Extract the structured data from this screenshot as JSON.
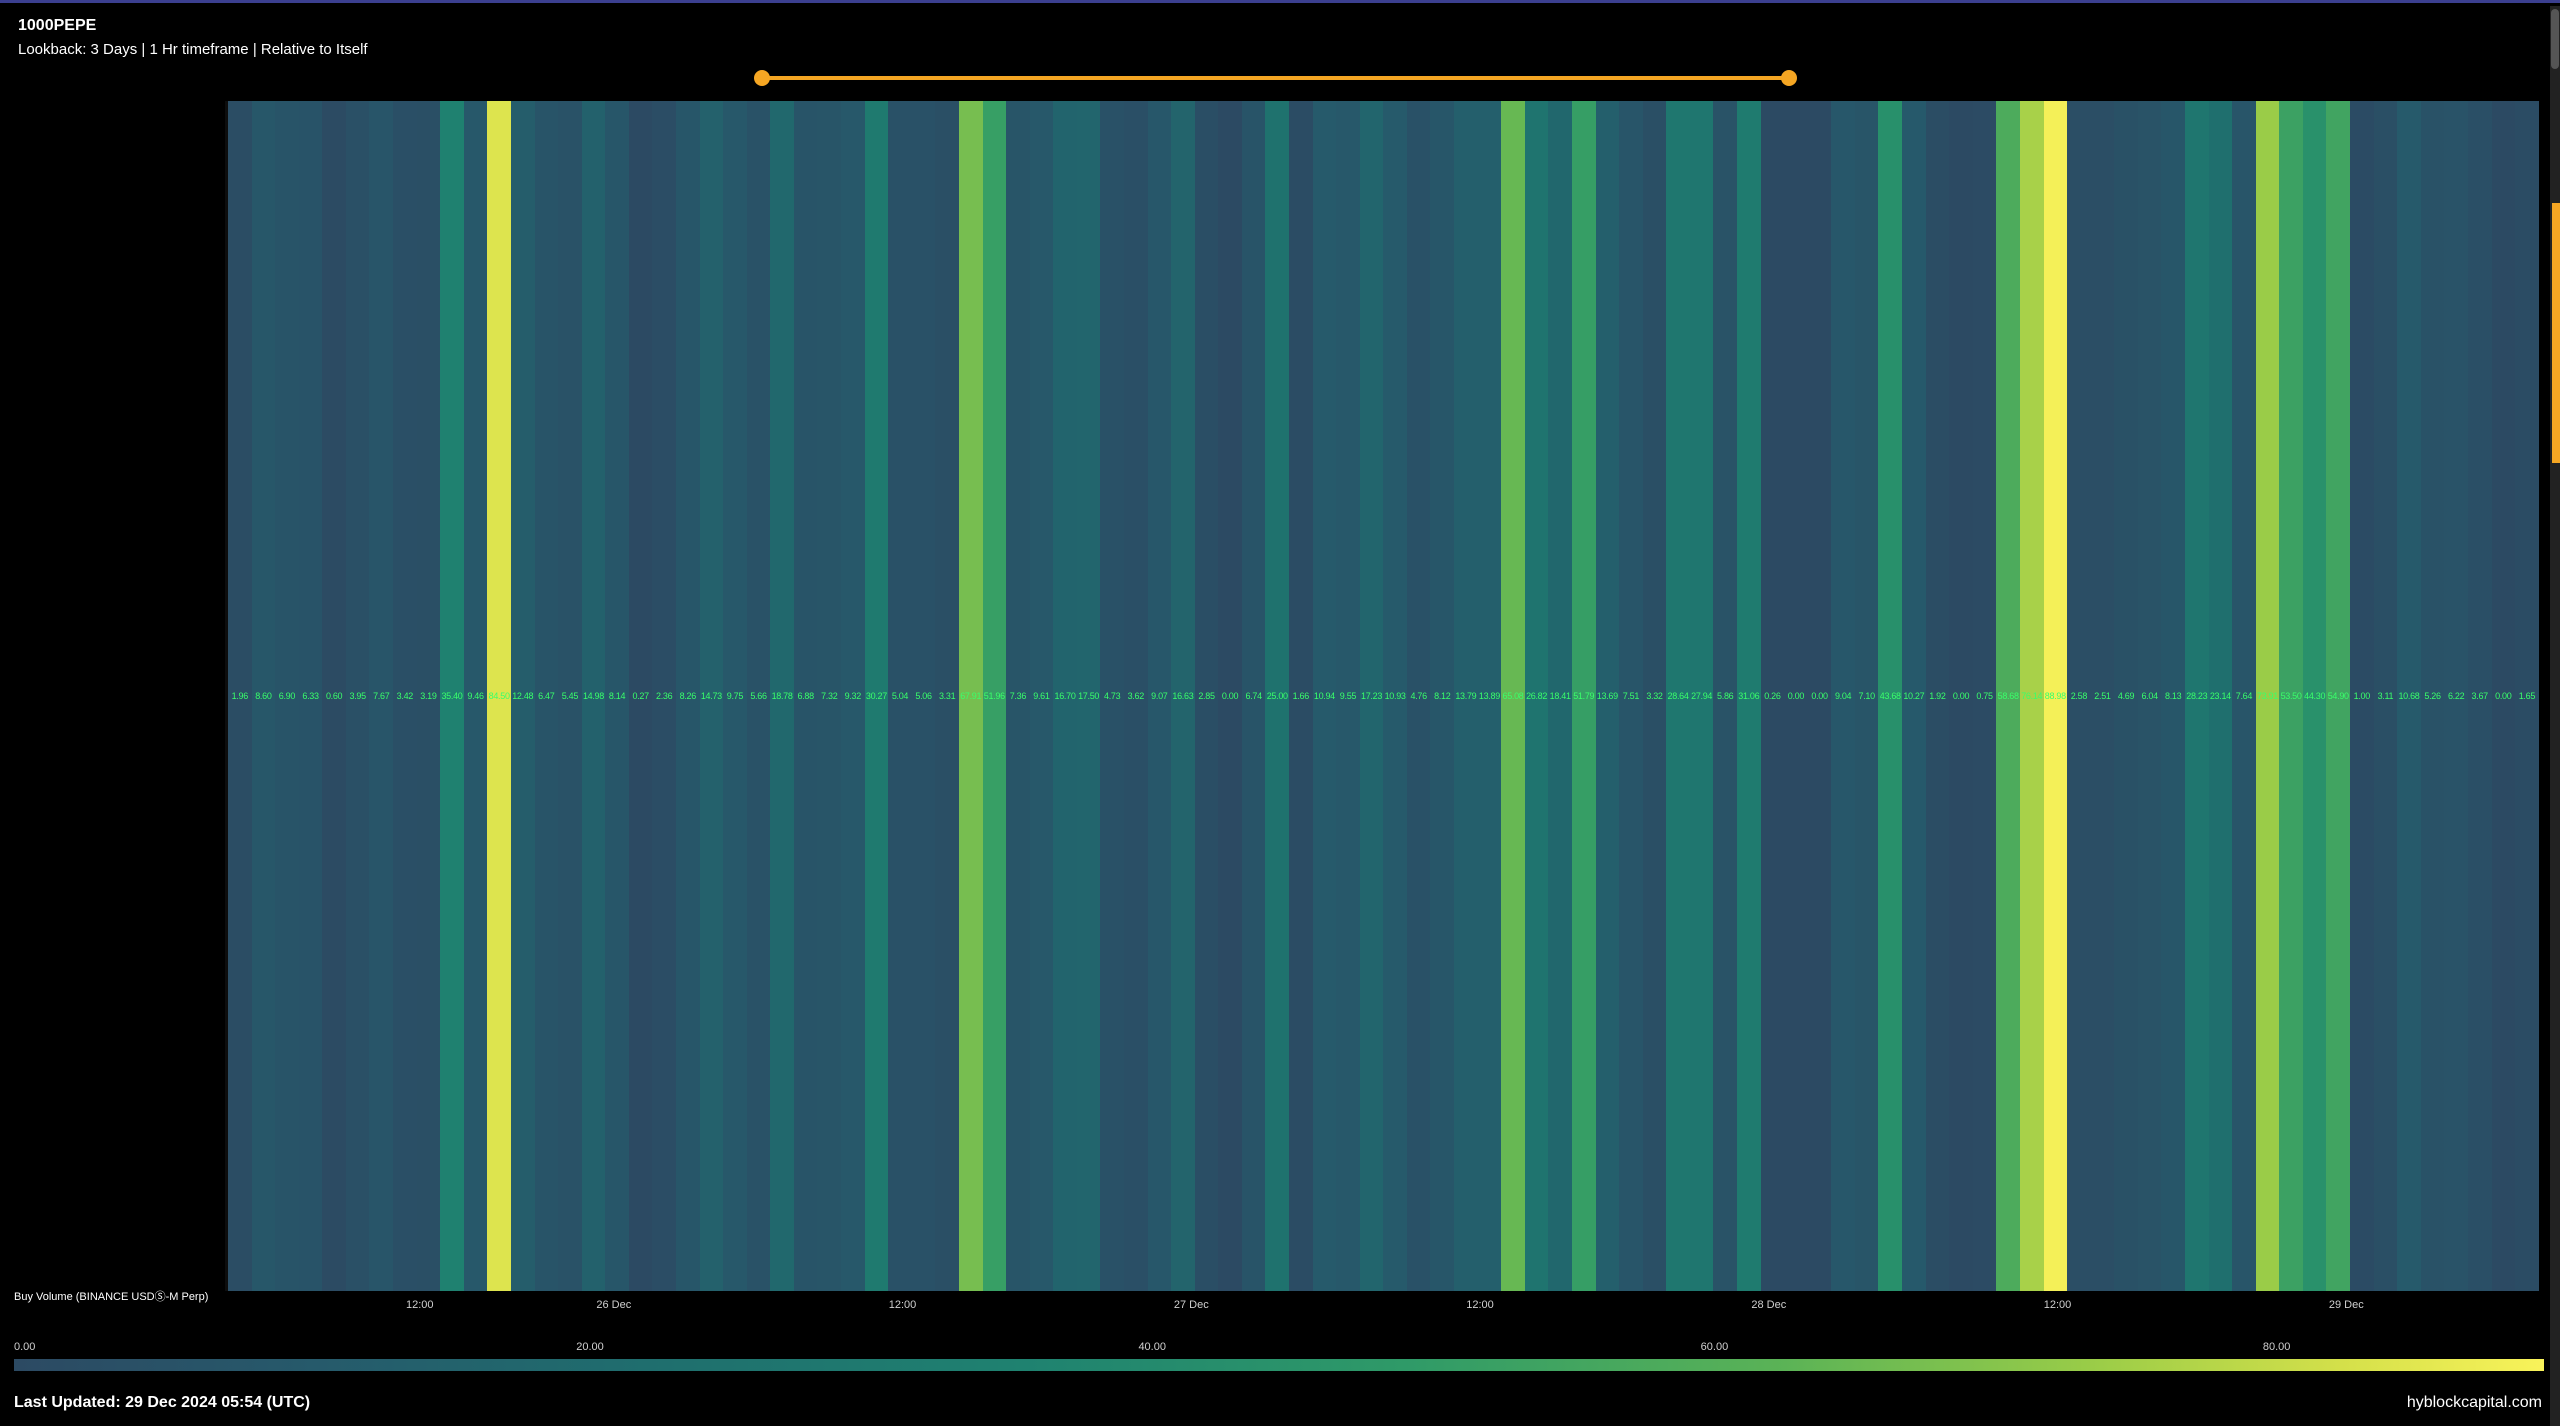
{
  "header": {
    "symbol": "1000PEPE",
    "subtitle": "Lookback: 3 Days | 1 Hr timeframe | Relative to Itself"
  },
  "chart": {
    "type": "heatmap-columns",
    "background_color": "#000000",
    "value_label_color": "#39ff6a",
    "value_label_fontsize": 9,
    "y_axis_label": "Buy Volume (BINANCE USDⓈ-M Perp)",
    "colorscale": {
      "min": 0.0,
      "max": 90.0,
      "stops": [
        {
          "t": 0.0,
          "color": "#2c4a63"
        },
        {
          "t": 0.12,
          "color": "#265a6b"
        },
        {
          "t": 0.25,
          "color": "#1f6e6e"
        },
        {
          "t": 0.4,
          "color": "#1f8270"
        },
        {
          "t": 0.55,
          "color": "#2f9a68"
        },
        {
          "t": 0.7,
          "color": "#5bb356"
        },
        {
          "t": 0.82,
          "color": "#99cc48"
        },
        {
          "t": 0.92,
          "color": "#d4e04a"
        },
        {
          "t": 1.0,
          "color": "#f9f35a"
        }
      ]
    },
    "legend_ticks": [
      "0.00",
      "20.00",
      "40.00",
      "60.00",
      "80.00"
    ],
    "x_ticks": [
      {
        "pos": 0.083,
        "label": "12:00"
      },
      {
        "pos": 0.167,
        "label": "26 Dec"
      },
      {
        "pos": 0.292,
        "label": "12:00"
      },
      {
        "pos": 0.417,
        "label": "27 Dec"
      },
      {
        "pos": 0.542,
        "label": "12:00"
      },
      {
        "pos": 0.667,
        "label": "28 Dec"
      },
      {
        "pos": 0.792,
        "label": "12:00"
      },
      {
        "pos": 0.917,
        "label": "29 Dec"
      }
    ],
    "values": [
      1.96,
      8.6,
      6.9,
      6.33,
      0.6,
      3.95,
      7.67,
      3.42,
      3.19,
      35.4,
      9.46,
      84.5,
      12.48,
      6.47,
      5.45,
      14.98,
      8.14,
      0.27,
      2.36,
      8.26,
      14.73,
      9.75,
      5.66,
      18.78,
      6.88,
      7.32,
      9.32,
      30.27,
      5.04,
      5.06,
      3.31,
      67.91,
      51.96,
      7.36,
      9.61,
      16.7,
      17.5,
      4.73,
      3.62,
      9.07,
      16.63,
      2.85,
      0.0,
      6.74,
      25.0,
      1.66,
      10.94,
      9.55,
      17.23,
      10.93,
      4.76,
      8.12,
      13.79,
      13.89,
      65.08,
      26.82,
      18.41,
      51.79,
      13.69,
      7.51,
      3.32,
      28.64,
      27.94,
      5.86,
      31.06,
      0.26,
      0.0,
      0.0,
      9.04,
      7.1,
      43.68,
      10.27,
      1.92,
      0.0,
      0.75,
      58.68,
      76.14,
      88.98,
      2.58,
      2.51,
      4.69,
      6.04,
      8.13,
      28.23,
      23.14,
      7.64,
      73.91,
      53.5,
      44.3,
      54.9,
      1.0,
      3.11,
      10.68,
      5.26,
      6.22,
      3.67,
      0.0,
      1.65
    ]
  },
  "slider": {
    "track_color": "#f5a623",
    "handle_color": "#f5a623",
    "left_pos": 0.0,
    "right_pos": 1.0
  },
  "footer": {
    "last_updated": "Last Updated: 29 Dec 2024 05:54 (UTC)",
    "watermark": "hyblockcapital.com"
  },
  "colors": {
    "top_border": "#3b3f8f",
    "right_accent": "#f5a623"
  }
}
